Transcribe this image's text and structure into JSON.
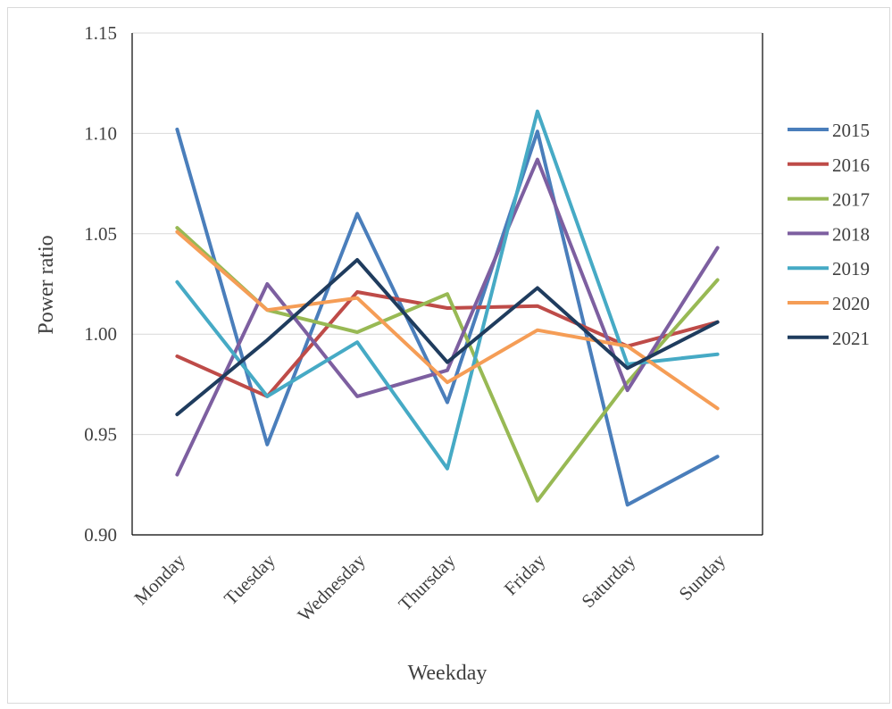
{
  "chart_data": {
    "type": "line",
    "title": "",
    "xlabel": "Weekday",
    "ylabel": "Power ratio",
    "categories": [
      "Monday",
      "Tuesday",
      "Wednesday",
      "Thursday",
      "Friday",
      "Saturday",
      "Sunday"
    ],
    "ylim": [
      0.9,
      1.15
    ],
    "yticks": [
      "0.90",
      "0.95",
      "1.00",
      "1.05",
      "1.10",
      "1.15"
    ],
    "grid": "horizontal",
    "legend_position": "right",
    "series": [
      {
        "name": "2015",
        "color": "#4a7ebb",
        "values": [
          1.102,
          0.945,
          1.06,
          0.966,
          1.101,
          0.915,
          0.939
        ]
      },
      {
        "name": "2016",
        "color": "#be4b48",
        "values": [
          0.989,
          0.969,
          1.021,
          1.013,
          1.014,
          0.994,
          1.006
        ]
      },
      {
        "name": "2017",
        "color": "#98b954",
        "values": [
          1.053,
          1.012,
          1.001,
          1.02,
          0.917,
          0.976,
          1.027
        ]
      },
      {
        "name": "2018",
        "color": "#7d5fa0",
        "values": [
          0.93,
          1.025,
          0.969,
          0.982,
          1.087,
          0.972,
          1.043
        ]
      },
      {
        "name": "2019",
        "color": "#46aac5",
        "values": [
          1.026,
          0.969,
          0.996,
          0.933,
          1.111,
          0.985,
          0.99
        ]
      },
      {
        "name": "2020",
        "color": "#f59d56",
        "values": [
          1.051,
          1.012,
          1.018,
          0.976,
          1.002,
          0.994,
          0.963
        ]
      },
      {
        "name": "2021",
        "color": "#1f3c5e",
        "values": [
          0.96,
          0.997,
          1.037,
          0.986,
          1.023,
          0.983,
          1.006
        ]
      }
    ]
  }
}
